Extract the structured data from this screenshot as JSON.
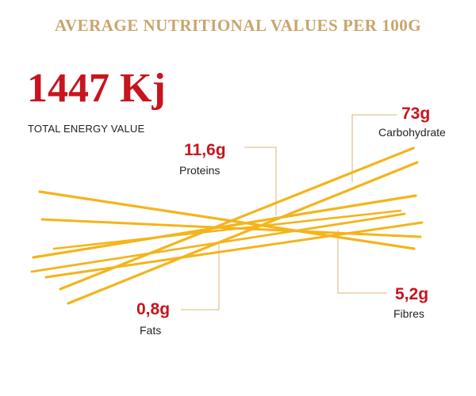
{
  "title": "AVERAGE NUTRITIONAL VALUES PER 100G",
  "energy": {
    "value": "1447 Kj",
    "label": "TOTAL ENERGY VALUE"
  },
  "nutrients": {
    "carbohydrate": {
      "value": "73g",
      "label": "Carbohydrate"
    },
    "proteins": {
      "value": "11,6g",
      "label": "Proteins"
    },
    "fats": {
      "value": "0,8g",
      "label": "Fats"
    },
    "fibres": {
      "value": "5,2g",
      "label": "Fibres"
    }
  },
  "colors": {
    "accent_red": "#c8141e",
    "title_gold": "#c9a56a",
    "spaghetti": "#f4b41a",
    "connector": "#d9b77a"
  }
}
